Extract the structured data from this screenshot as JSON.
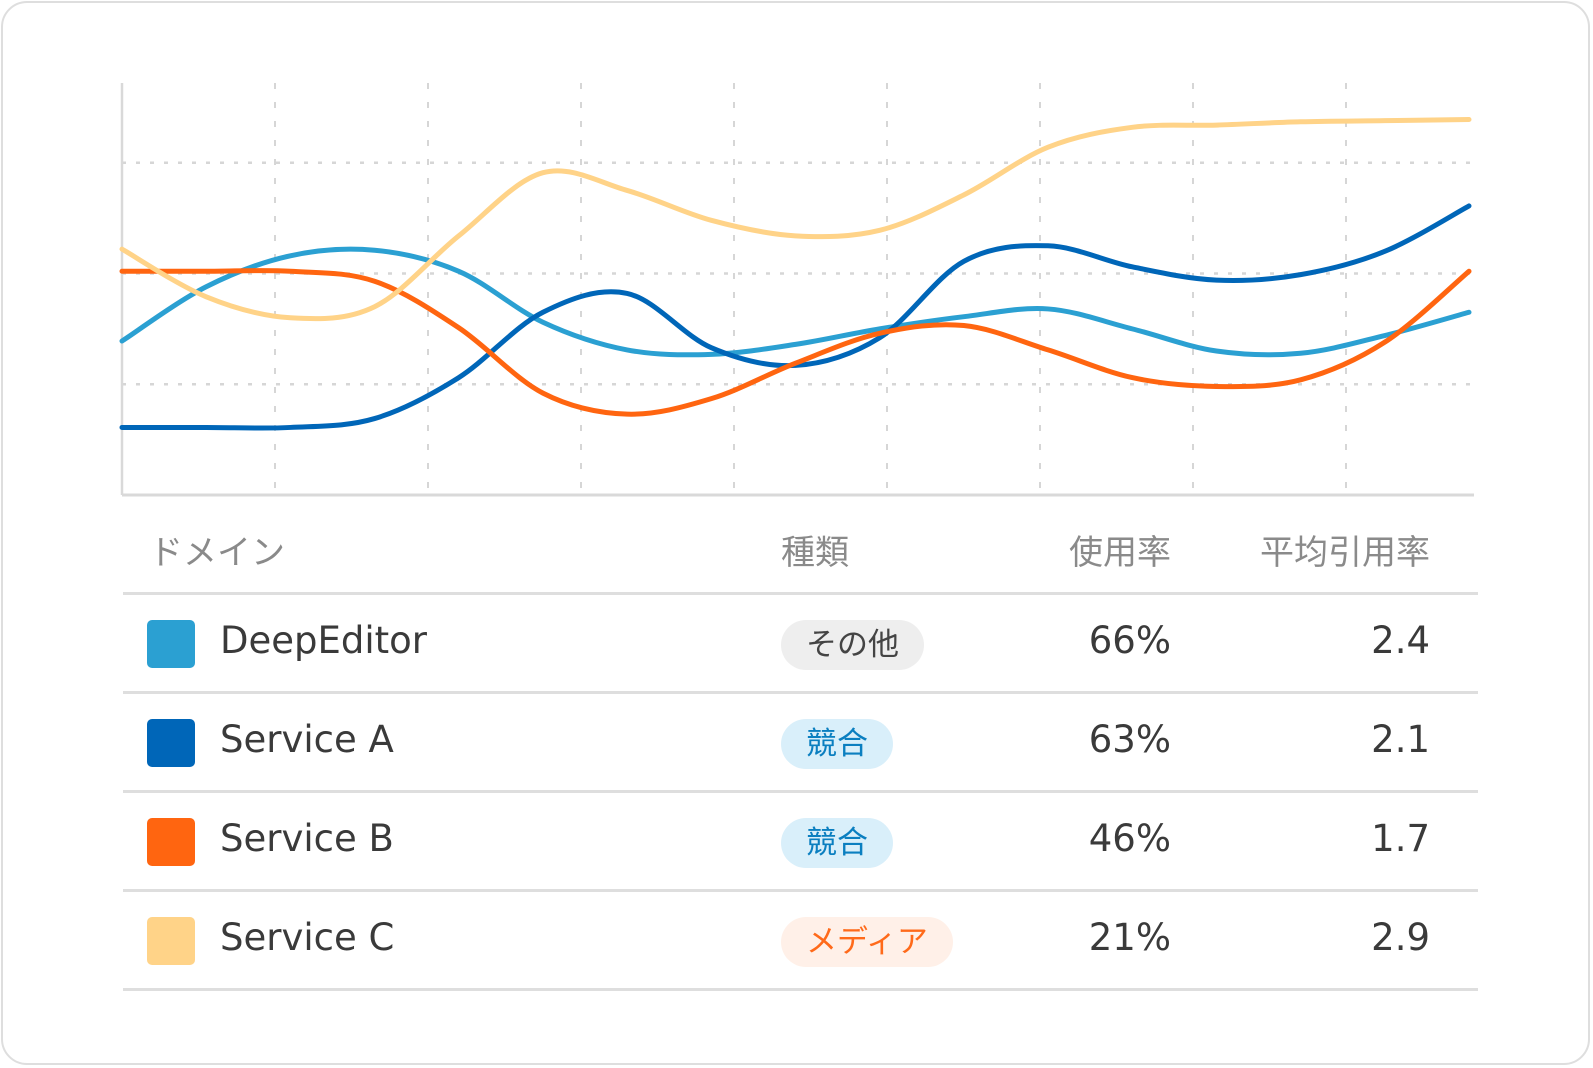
{
  "chart_data": {
    "type": "line",
    "title": "",
    "xlabel": "",
    "ylabel": "",
    "x": [
      0,
      1,
      2,
      3,
      4,
      5,
      6,
      7,
      8,
      9,
      10,
      11,
      12,
      13,
      14,
      15,
      16
    ],
    "ylim": [
      0,
      3.72
    ],
    "grid": true,
    "smooth": true,
    "series": [
      {
        "name": "DeepEditor",
        "color": "#2ba0d2",
        "values": [
          1.39,
          1.88,
          2.16,
          2.21,
          2.02,
          1.56,
          1.31,
          1.27,
          1.36,
          1.5,
          1.61,
          1.68,
          1.5,
          1.3,
          1.28,
          1.44,
          1.65
        ]
      },
      {
        "name": "Service A",
        "color": "#0066b8",
        "values": [
          0.61,
          0.61,
          0.61,
          0.69,
          1.06,
          1.65,
          1.82,
          1.33,
          1.17,
          1.42,
          2.11,
          2.25,
          2.06,
          1.94,
          1.99,
          2.2,
          2.61
        ]
      },
      {
        "name": "Service B",
        "color": "#ff6510",
        "values": [
          2.02,
          2.02,
          2.02,
          1.93,
          1.51,
          0.92,
          0.73,
          0.87,
          1.19,
          1.46,
          1.53,
          1.31,
          1.06,
          0.98,
          1.04,
          1.38,
          2.02
        ]
      },
      {
        "name": "Service C",
        "color": "#ffd388",
        "values": [
          2.22,
          1.79,
          1.6,
          1.7,
          2.34,
          2.91,
          2.75,
          2.48,
          2.34,
          2.39,
          2.71,
          3.14,
          3.32,
          3.34,
          3.37,
          3.38,
          3.39
        ]
      }
    ]
  },
  "table": {
    "headers": {
      "domain": "ドメイン",
      "type": "種類",
      "usage": "使用率",
      "citation": "平均引用率"
    },
    "rows": [
      {
        "domain": "DeepEditor",
        "type": "その他",
        "type_kind": "other",
        "usage": "66%",
        "citation": "2.4"
      },
      {
        "domain": "Service A",
        "type": "競合",
        "type_kind": "competitor",
        "usage": "63%",
        "citation": "2.1"
      },
      {
        "domain": "Service B",
        "type": "競合",
        "type_kind": "competitor",
        "usage": "46%",
        "citation": "1.7"
      },
      {
        "domain": "Service C",
        "type": "メディア",
        "type_kind": "media",
        "usage": "21%",
        "citation": "2.9"
      }
    ]
  },
  "badge_colors": {
    "other": {
      "bg": "#eeeeee",
      "fg": "#444444"
    },
    "competitor": {
      "bg": "#d9effa",
      "fg": "#0b7fc0"
    },
    "media": {
      "bg": "#fff0e8",
      "fg": "#ff6a1a"
    }
  }
}
